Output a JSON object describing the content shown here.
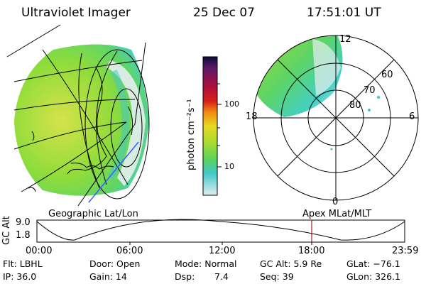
{
  "header": {
    "instrument": "Ultraviolet Imager",
    "date": "25 Dec 07",
    "time": "17:51:01 UT"
  },
  "left_panel": {
    "caption": "Geographic Lat/Lon",
    "palette": {
      "ocean_green": "#7edb3c",
      "yellow": "#d8e34a",
      "cyan": "#4fd6d6",
      "coast": "#000000"
    }
  },
  "colorbar": {
    "unit_label": "photon cm⁻²s⁻¹",
    "ticks": [
      "100",
      "10"
    ],
    "stops": [
      "#0a0a3a",
      "#5b1a6a",
      "#b0103a",
      "#d8201a",
      "#f08a10",
      "#e8d820",
      "#a8dc30",
      "#5bd35b",
      "#40c8c8",
      "#cfe8ee"
    ]
  },
  "right_panel": {
    "caption": "Apex  MLat/MLT",
    "lat_labels": [
      "60",
      "70",
      "80"
    ],
    "mlt_labels": {
      "top": "12",
      "left": "18",
      "right": "6",
      "bottom": "0"
    }
  },
  "altitude_plot": {
    "ylabel": "GC Alt",
    "yticks": [
      "9.0",
      "1.8"
    ],
    "xticks": [
      "00:00",
      "06:00",
      "12:00",
      "18:00",
      "23:59"
    ],
    "marker_color": "#b01020"
  },
  "info": {
    "filter": "Flt: LBHL",
    "ip": "IP: 36.0",
    "door": "Door: Open",
    "gain": "Gain: 14",
    "mode": "Mode: Normal",
    "dsp": "Dsp:",
    "dsp_value": "7.4",
    "gc_alt": "GC Alt: 5.9 Re",
    "seq": "Seq: 39",
    "glat": "GLat: −76.1",
    "glon": "GLon: 326.1"
  }
}
